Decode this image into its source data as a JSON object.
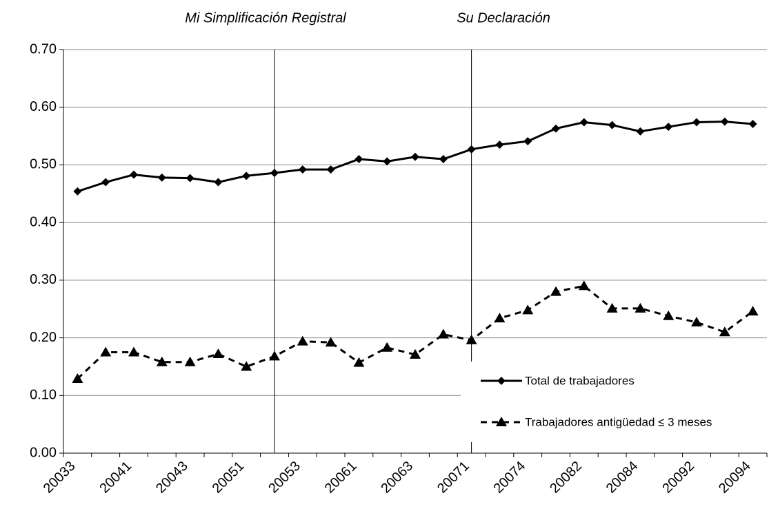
{
  "chart_data": {
    "type": "line",
    "annotations": [
      "Mi Simplificación Registral",
      "Su Declaración"
    ],
    "categories": [
      "20033",
      null,
      "20041",
      null,
      "20043",
      null,
      "20051",
      null,
      "20053",
      null,
      "20061",
      null,
      "20063",
      null,
      "20071",
      null,
      "20074",
      null,
      "20082",
      null,
      "20084",
      null,
      "20092",
      null,
      "20094"
    ],
    "series": [
      {
        "name": "Total de trabajadores",
        "color": "#000000",
        "marker": "diamond",
        "dash": "solid",
        "values": [
          0.454,
          0.47,
          0.483,
          0.478,
          0.477,
          0.47,
          0.481,
          0.486,
          0.492,
          0.492,
          0.51,
          0.506,
          0.514,
          0.51,
          0.527,
          0.535,
          0.541,
          0.563,
          0.574,
          0.569,
          0.558,
          0.566,
          0.574,
          0.575,
          0.571
        ]
      },
      {
        "name": "Trabajadores antigüedad ≤ 3 meses",
        "color": "#000000",
        "marker": "triangle",
        "dash": "dashed",
        "values": [
          0.129,
          0.175,
          0.175,
          0.158,
          0.158,
          0.172,
          0.15,
          0.168,
          0.194,
          0.192,
          0.157,
          0.183,
          0.171,
          0.206,
          0.196,
          0.234,
          0.248,
          0.28,
          0.29,
          0.251,
          0.251,
          0.238,
          0.227,
          0.21,
          0.246
        ]
      }
    ],
    "ylim": [
      0,
      0.7
    ],
    "yticks": [
      {
        "value": 0,
        "label": "0.00"
      },
      {
        "value": 0.1,
        "label": "0.10"
      },
      {
        "value": 0.2,
        "label": "0.20"
      },
      {
        "value": 0.3,
        "label": "0.30"
      },
      {
        "value": 0.4,
        "label": "0.40"
      },
      {
        "value": 0.5,
        "label": "0.50"
      },
      {
        "value": 0.6,
        "label": "0.60"
      },
      {
        "value": 0.7,
        "label": "0.70"
      }
    ],
    "grid": true,
    "legend": "lower right"
  }
}
